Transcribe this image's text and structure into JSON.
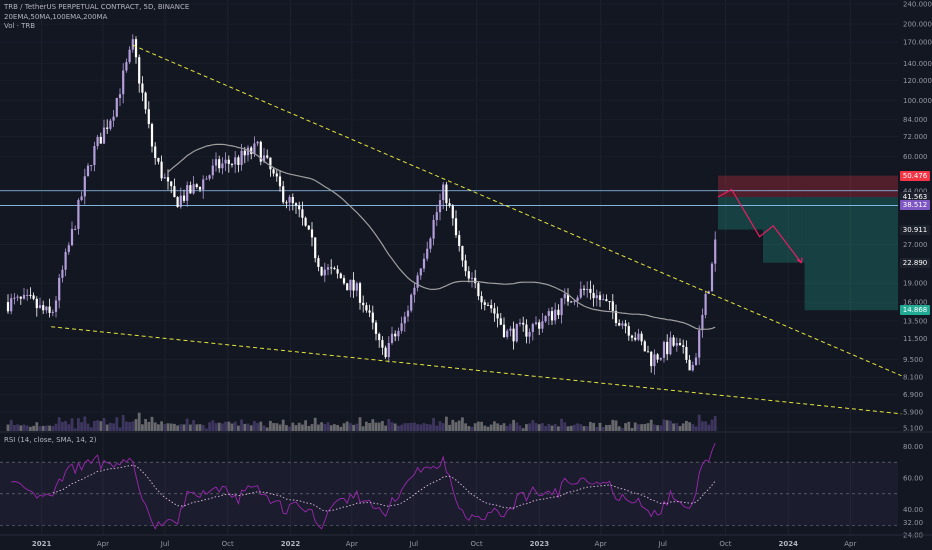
{
  "header": {
    "symbol_line": "TRB / TetherUS PERPETUAL CONTRACT, 5D, BINANCE",
    "indicators_line": "20EMA,50MA,100EMA,200MA",
    "volume_line": "Vol · TRB"
  },
  "rsi_panel": {
    "label": "RSI (14, close, SMA, 14, 2)",
    "ticks": [
      "80.00",
      "60.00",
      "40.00",
      "32.00",
      "24.00"
    ]
  },
  "price_axis": {
    "ticks": [
      "240.000",
      "200.000",
      "170.000",
      "140.000",
      "120.000",
      "100.000",
      "84.000",
      "72.000",
      "60.000",
      "44.000",
      "27.000",
      "19.000",
      "16.000",
      "13.500",
      "11.500",
      "9.500",
      "8.100",
      "6.900",
      "5.900",
      "5.100"
    ],
    "tags": [
      {
        "value": "50.476",
        "color": "#f23645"
      },
      {
        "value": "41.563",
        "color": "#1e222d"
      },
      {
        "value": "38.512",
        "color": "#7e57c2"
      },
      {
        "value": "30.911",
        "color": "#1e222d"
      },
      {
        "value": "22.890",
        "color": "#1e222d"
      },
      {
        "value": "14.868",
        "color": "#22ab94"
      }
    ]
  },
  "time_axis": {
    "labels": [
      {
        "text": "2021",
        "major": true
      },
      {
        "text": "Apr",
        "major": false
      },
      {
        "text": "Jul",
        "major": false
      },
      {
        "text": "Oct",
        "major": false
      },
      {
        "text": "2022",
        "major": true
      },
      {
        "text": "Apr",
        "major": false
      },
      {
        "text": "Jul",
        "major": false
      },
      {
        "text": "Oct",
        "major": false
      },
      {
        "text": "2023",
        "major": true
      },
      {
        "text": "Apr",
        "major": false
      },
      {
        "text": "Jul",
        "major": false
      },
      {
        "text": "Oct",
        "major": false
      },
      {
        "text": "2024",
        "major": true
      },
      {
        "text": "Apr",
        "major": false
      }
    ]
  },
  "colors": {
    "candle_up": "#b39ddb",
    "candle_down": "#ffffff",
    "trendline": "#e5e53b",
    "ma_line": "#9e9e9e",
    "rsi_line": "#9c27b0",
    "level_line": "#90caf9",
    "target_zone": "#22ab94",
    "stop_zone": "#f23645",
    "projection": "#e91e63"
  },
  "chart_data": {
    "type": "candlestick",
    "scale": "log",
    "ylim": [
      5.1,
      240
    ],
    "price_path": [
      {
        "t": "2020-12",
        "p": 16.0
      },
      {
        "t": "2021-01",
        "p": 14.0
      },
      {
        "t": "2021-02",
        "p": 30.0
      },
      {
        "t": "2021-03",
        "p": 60.0
      },
      {
        "t": "2021-04",
        "p": 90.0
      },
      {
        "t": "2021-05",
        "p": 165.0
      },
      {
        "t": "2021-06",
        "p": 60.0
      },
      {
        "t": "2021-07",
        "p": 40.0
      },
      {
        "t": "2021-08",
        "p": 45.0
      },
      {
        "t": "2021-09",
        "p": 55.0
      },
      {
        "t": "2021-10",
        "p": 58.0
      },
      {
        "t": "2021-11",
        "p": 65.0
      },
      {
        "t": "2021-12",
        "p": 45.0
      },
      {
        "t": "2022-01",
        "p": 35.0
      },
      {
        "t": "2022-02",
        "p": 22.0
      },
      {
        "t": "2022-03",
        "p": 20.0
      },
      {
        "t": "2022-04",
        "p": 17.0
      },
      {
        "t": "2022-05",
        "p": 10.0
      },
      {
        "t": "2022-06",
        "p": 13.0
      },
      {
        "t": "2022-07",
        "p": 25.0
      },
      {
        "t": "2022-08",
        "p": 45.0
      },
      {
        "t": "2022-09",
        "p": 20.0
      },
      {
        "t": "2022-10",
        "p": 16.5
      },
      {
        "t": "2022-11",
        "p": 12.0
      },
      {
        "t": "2022-12",
        "p": 12.5
      },
      {
        "t": "2023-01",
        "p": 14.0
      },
      {
        "t": "2023-02",
        "p": 17.0
      },
      {
        "t": "2023-03",
        "p": 18.0
      },
      {
        "t": "2023-04",
        "p": 15.0
      },
      {
        "t": "2023-05",
        "p": 12.5
      },
      {
        "t": "2023-06",
        "p": 9.5
      },
      {
        "t": "2023-07",
        "p": 11.0
      },
      {
        "t": "2023-08",
        "p": 9.0
      },
      {
        "t": "2023-09",
        "p": 25.0
      },
      {
        "t": "2023-09-20",
        "p": 41.563
      }
    ],
    "trendlines": [
      {
        "from": {
          "t": "2021-05",
          "p": 165
        },
        "to": {
          "t": "2024-06",
          "p": 8.2
        }
      },
      {
        "from": {
          "t": "2021-01",
          "p": 12.8
        },
        "to": {
          "t": "2024-06",
          "p": 5.8
        }
      }
    ],
    "horizontal_levels": [
      44.0,
      38.512
    ],
    "position": {
      "entry": 41.563,
      "stop": 50.476,
      "targets": [
        30.911,
        22.89,
        14.868
      ]
    },
    "projection_path": [
      {
        "t": "2023-09-20",
        "p": 41.563
      },
      {
        "t": "2023-10-10",
        "p": 44.5
      },
      {
        "t": "2023-11-20",
        "p": 29.0
      },
      {
        "t": "2023-12-10",
        "p": 32.0
      },
      {
        "t": "2024-01-20",
        "p": 22.9
      }
    ],
    "rsi": {
      "ylim": [
        24,
        84
      ],
      "levels": [
        70,
        50,
        30
      ],
      "last": 82
    }
  }
}
